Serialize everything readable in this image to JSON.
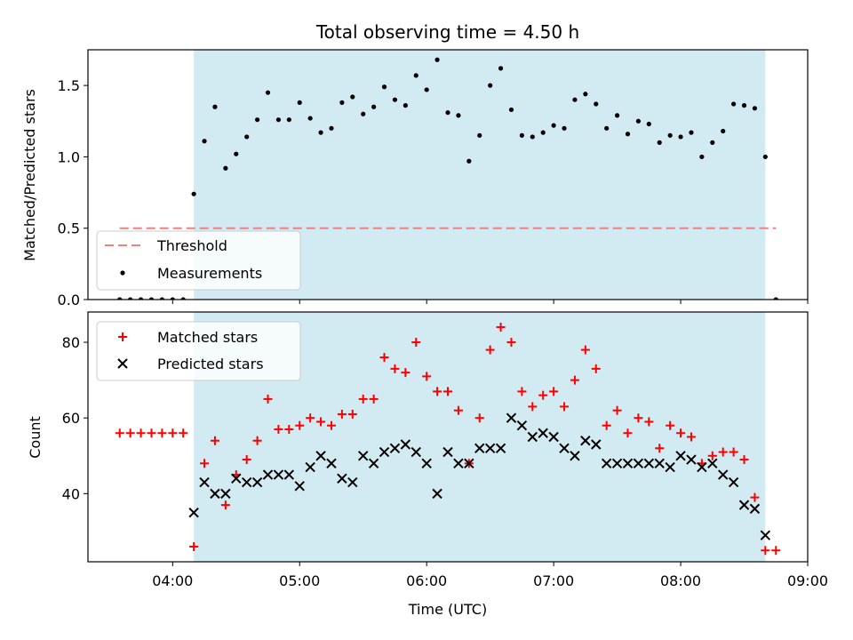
{
  "chart_data": [
    {
      "type": "scatter",
      "title": "Total observing time = 4.50 h",
      "xlabel": "",
      "ylabel": "Matched/Predicted stars",
      "xlim": [
        "03:20",
        "09:00"
      ],
      "ylim": [
        0,
        1.75
      ],
      "yticks": [
        "0.0",
        "0.5",
        "1.0",
        "1.5"
      ],
      "shaded_interval": [
        "04:10",
        "08:40"
      ],
      "threshold": {
        "label": "Threshold",
        "value": 0.5,
        "x_start": "03:35",
        "x_end": "08:45",
        "color": "#f08080"
      },
      "series": [
        {
          "name": "Measurements",
          "marker": "dot",
          "color": "#000000",
          "x": [
            "03:35",
            "03:40",
            "03:45",
            "03:50",
            "03:55",
            "04:00",
            "04:05",
            "04:10",
            "04:15",
            "04:20",
            "04:25",
            "04:30",
            "04:35",
            "04:40",
            "04:45",
            "04:50",
            "04:55",
            "05:00",
            "05:05",
            "05:10",
            "05:15",
            "05:20",
            "05:25",
            "05:30",
            "05:35",
            "05:40",
            "05:45",
            "05:50",
            "05:55",
            "06:00",
            "06:05",
            "06:10",
            "06:15",
            "06:20",
            "06:25",
            "06:30",
            "06:35",
            "06:40",
            "06:45",
            "06:50",
            "06:55",
            "07:00",
            "07:05",
            "07:10",
            "07:15",
            "07:20",
            "07:25",
            "07:30",
            "07:35",
            "07:40",
            "07:45",
            "07:50",
            "07:55",
            "08:00",
            "08:05",
            "08:10",
            "08:15",
            "08:20",
            "08:25",
            "08:30",
            "08:35",
            "08:40",
            "08:45"
          ],
          "y": [
            0,
            0,
            0,
            0,
            0,
            0,
            0,
            0.74,
            1.11,
            1.35,
            0.92,
            1.02,
            1.14,
            1.26,
            1.45,
            1.26,
            1.26,
            1.38,
            1.27,
            1.17,
            1.2,
            1.38,
            1.42,
            1.3,
            1.35,
            1.49,
            1.4,
            1.36,
            1.57,
            1.47,
            1.68,
            1.31,
            1.29,
            0.97,
            1.15,
            1.5,
            1.62,
            1.33,
            1.15,
            1.14,
            1.17,
            1.22,
            1.2,
            1.4,
            1.44,
            1.37,
            1.2,
            1.29,
            1.16,
            1.25,
            1.23,
            1.1,
            1.15,
            1.14,
            1.17,
            1.0,
            1.1,
            1.18,
            1.37,
            1.36,
            1.34,
            1.0,
            0
          ]
        }
      ]
    },
    {
      "type": "scatter",
      "title": "",
      "xlabel": "Time (UTC)",
      "ylabel": "Count",
      "xlim": [
        "03:20",
        "09:00"
      ],
      "ylim": [
        22,
        88
      ],
      "xticks": [
        "04:00",
        "05:00",
        "06:00",
        "07:00",
        "08:00",
        "09:00"
      ],
      "yticks": [
        "40",
        "60",
        "80"
      ],
      "shaded_interval": [
        "04:10",
        "08:40"
      ],
      "series": [
        {
          "name": "Matched stars",
          "marker": "plus",
          "color": "#ff0000",
          "x": [
            "03:35",
            "03:40",
            "03:45",
            "03:50",
            "03:55",
            "04:00",
            "04:05",
            "04:10",
            "04:15",
            "04:20",
            "04:25",
            "04:30",
            "04:35",
            "04:40",
            "04:45",
            "04:50",
            "04:55",
            "05:00",
            "05:05",
            "05:10",
            "05:15",
            "05:20",
            "05:25",
            "05:30",
            "05:35",
            "05:40",
            "05:45",
            "05:50",
            "05:55",
            "06:00",
            "06:05",
            "06:10",
            "06:15",
            "06:20",
            "06:25",
            "06:30",
            "06:35",
            "06:40",
            "06:45",
            "06:50",
            "06:55",
            "07:00",
            "07:05",
            "07:10",
            "07:15",
            "07:20",
            "07:25",
            "07:30",
            "07:35",
            "07:40",
            "07:45",
            "07:50",
            "07:55",
            "08:00",
            "08:05",
            "08:10",
            "08:15",
            "08:20",
            "08:25",
            "08:30",
            "08:35",
            "08:40",
            "08:45"
          ],
          "y": [
            56,
            56,
            56,
            56,
            56,
            56,
            56,
            26,
            48,
            54,
            37,
            45,
            49,
            54,
            65,
            57,
            57,
            58,
            60,
            59,
            58,
            61,
            61,
            65,
            65,
            76,
            73,
            72,
            80,
            71,
            67,
            67,
            62,
            48,
            60,
            78,
            84,
            80,
            67,
            63,
            66,
            67,
            63,
            70,
            78,
            73,
            58,
            62,
            56,
            60,
            59,
            52,
            58,
            56,
            55,
            48,
            50,
            51,
            51,
            49,
            39,
            25,
            25
          ]
        },
        {
          "name": "Predicted stars",
          "marker": "x",
          "color": "#000000",
          "x": [
            "04:10",
            "04:15",
            "04:20",
            "04:25",
            "04:30",
            "04:35",
            "04:40",
            "04:45",
            "04:50",
            "04:55",
            "05:00",
            "05:05",
            "05:10",
            "05:15",
            "05:20",
            "05:25",
            "05:30",
            "05:35",
            "05:40",
            "05:45",
            "05:50",
            "05:55",
            "06:00",
            "06:05",
            "06:10",
            "06:15",
            "06:20",
            "06:25",
            "06:30",
            "06:35",
            "06:40",
            "06:45",
            "06:50",
            "06:55",
            "07:00",
            "07:05",
            "07:10",
            "07:15",
            "07:20",
            "07:25",
            "07:30",
            "07:35",
            "07:40",
            "07:45",
            "07:50",
            "07:55",
            "08:00",
            "08:05",
            "08:10",
            "08:15",
            "08:20",
            "08:25",
            "08:30",
            "08:35",
            "08:40"
          ],
          "y": [
            35,
            43,
            40,
            40,
            44,
            43,
            43,
            45,
            45,
            45,
            42,
            47,
            50,
            48,
            44,
            43,
            50,
            48,
            51,
            52,
            53,
            51,
            48,
            40,
            51,
            48,
            48,
            52,
            52,
            52,
            60,
            58,
            55,
            56,
            55,
            52,
            50,
            54,
            53,
            48,
            48,
            48,
            48,
            48,
            48,
            47,
            50,
            49,
            47,
            48,
            45,
            43,
            37,
            36,
            29
          ]
        }
      ]
    }
  ]
}
